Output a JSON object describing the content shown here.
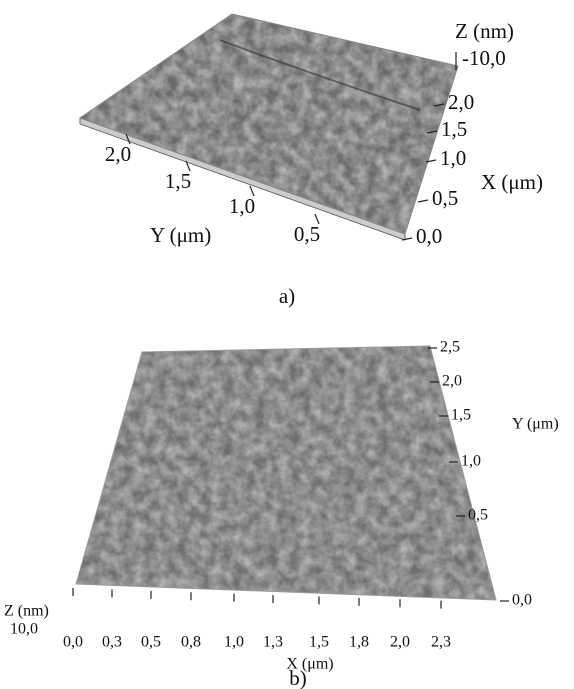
{
  "panel_a": {
    "z_label": "Z (nm)",
    "z_tick": "-10,0",
    "x_label": "X (μm)",
    "x_ticks": [
      "2,0",
      "1,5",
      "1,0",
      "0,5",
      "0,0"
    ],
    "y_label": "Y (μm)",
    "y_ticks": [
      "2,0",
      "1,5",
      "1,0",
      "0,5"
    ],
    "caption": "a)"
  },
  "panel_b": {
    "y_label": "Y (μm)",
    "y_ticks": [
      "2,5",
      "2,0",
      "1,5",
      "1,0",
      "0,5",
      "0,0"
    ],
    "z_label": "Z (nm)",
    "z_tick": "10,0",
    "x_label": "X (μm)",
    "x_ticks": [
      "0,0",
      "0,3",
      "0,5",
      "0,8",
      "1,0",
      "1,3",
      "1,5",
      "1,8",
      "2,0",
      "2,3"
    ],
    "caption": "b)"
  }
}
